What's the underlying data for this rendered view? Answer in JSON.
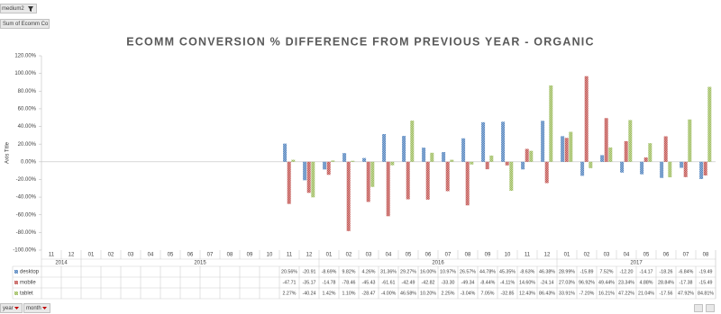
{
  "chart_data": {
    "type": "bar",
    "title": "ECOMM CONVERSION % DIFFERENCE FROM PREVIOUS YEAR - ORGANIC",
    "y_axis_title": "Axis Title",
    "field_buttons": {
      "top": [
        "medium2",
        "Sum of Ecomm Co"
      ],
      "bottom": [
        "year",
        "month"
      ]
    },
    "categories": [
      "11",
      "12",
      "01",
      "02",
      "03",
      "04",
      "05",
      "06",
      "07",
      "08",
      "09",
      "10",
      "11",
      "12",
      "01",
      "02",
      "03",
      "04",
      "05",
      "06",
      "07",
      "08",
      "09",
      "10",
      "11",
      "12",
      "01",
      "02",
      "03",
      "04",
      "05",
      "06",
      "07",
      "08"
    ],
    "x_groups": [
      "2014",
      "2014",
      "2015",
      "2015",
      "2015",
      "2015",
      "2015",
      "2015",
      "2015",
      "2015",
      "2015",
      "2015",
      "2015",
      "2015",
      "2016",
      "2016",
      "2016",
      "2016",
      "2016",
      "2016",
      "2016",
      "2016",
      "2016",
      "2016",
      "2016",
      "2016",
      "2017",
      "2017",
      "2017",
      "2017",
      "2017",
      "2017",
      "2017",
      "2017"
    ],
    "series": [
      {
        "name": "desktop",
        "color": "#4f81bd",
        "values": [
          null,
          null,
          null,
          null,
          null,
          null,
          null,
          null,
          null,
          null,
          null,
          null,
          20.56,
          -20.91,
          -8.69,
          9.82,
          4.26,
          31.36,
          29.27,
          16.0,
          10.97,
          26.57,
          44.78,
          45.35,
          -8.63,
          46.38,
          28.99,
          -15.89,
          7.52,
          -12.2,
          -14.17,
          -18.26,
          -6.84,
          -19.49
        ],
        "value_labels": [
          null,
          null,
          null,
          null,
          null,
          null,
          null,
          null,
          null,
          null,
          null,
          null,
          "20.56%",
          "-20.91",
          "-8.69%",
          "9.82%",
          "4.26%",
          "31.36%",
          "29.27%",
          "16.00%",
          "10.97%",
          "26.57%",
          "44.78%",
          "45.35%",
          "-8.63%",
          "46.38%",
          "28.99%",
          "-15.89",
          "7.52%",
          "-12.20",
          "-14.17",
          "-18.26",
          "-6.84%",
          "-19.49"
        ]
      },
      {
        "name": "mobile",
        "color": "#c0504d",
        "values": [
          null,
          null,
          null,
          null,
          null,
          null,
          null,
          null,
          null,
          null,
          null,
          null,
          -47.71,
          -35.17,
          -14.78,
          -78.46,
          -45.43,
          -61.61,
          -42.49,
          -42.82,
          -33.3,
          -49.34,
          -8.44,
          -4.11,
          14.6,
          -24.14,
          27.03,
          96.92,
          49.44,
          23.34,
          4.88,
          28.84,
          -17.38,
          -15.49
        ],
        "value_labels": [
          null,
          null,
          null,
          null,
          null,
          null,
          null,
          null,
          null,
          null,
          null,
          null,
          "-47.71",
          "-35.17",
          "-14.78",
          "-78.46",
          "-45.43",
          "-61.61",
          "-42.49",
          "-42.82",
          "-33.30",
          "-49.34",
          "-8.44%",
          "-4.11%",
          "14.60%",
          "-24.14",
          "27.03%",
          "96.92%",
          "49.44%",
          "23.34%",
          "4.88%",
          "28.84%",
          "-17.38",
          "-15.49"
        ]
      },
      {
        "name": "tablet",
        "color": "#9bbb59",
        "values": [
          null,
          null,
          null,
          null,
          null,
          null,
          null,
          null,
          null,
          null,
          null,
          null,
          2.27,
          -40.24,
          1.42,
          1.1,
          -28.47,
          -4.0,
          46.58,
          10.2,
          2.25,
          -3.04,
          7.05,
          -32.85,
          12.43,
          86.43,
          33.91,
          -7.2,
          16.21,
          47.22,
          21.04,
          -17.56,
          47.92,
          84.81
        ],
        "value_labels": [
          null,
          null,
          null,
          null,
          null,
          null,
          null,
          null,
          null,
          null,
          null,
          null,
          "2.27%",
          "-40.24",
          "1.42%",
          "1.10%",
          "-28.47",
          "-4.00%",
          "46.58%",
          "10.20%",
          "2.25%",
          "-3.04%",
          "7.05%",
          "-32.85",
          "12.43%",
          "86.43%",
          "33.91%",
          "-7.20%",
          "16.21%",
          "47.22%",
          "21.04%",
          "-17.56",
          "47.92%",
          "84.81%"
        ]
      }
    ],
    "ylim": [
      -100,
      120
    ],
    "yticks": [
      {
        "value": -100,
        "label": "-100.00%"
      },
      {
        "value": -80,
        "label": "-80.00%"
      },
      {
        "value": -60,
        "label": "-60.00%"
      },
      {
        "value": -40,
        "label": "-40.00%"
      },
      {
        "value": -20,
        "label": "-20.00%"
      },
      {
        "value": 0,
        "label": "0.00%"
      },
      {
        "value": 20,
        "label": "20.00%"
      },
      {
        "value": 40,
        "label": "40.00%"
      },
      {
        "value": 60,
        "label": "60.00%"
      },
      {
        "value": 80,
        "label": "80.00%"
      },
      {
        "value": 100,
        "label": "100.00%"
      },
      {
        "value": 120,
        "label": "120.00%"
      }
    ]
  }
}
